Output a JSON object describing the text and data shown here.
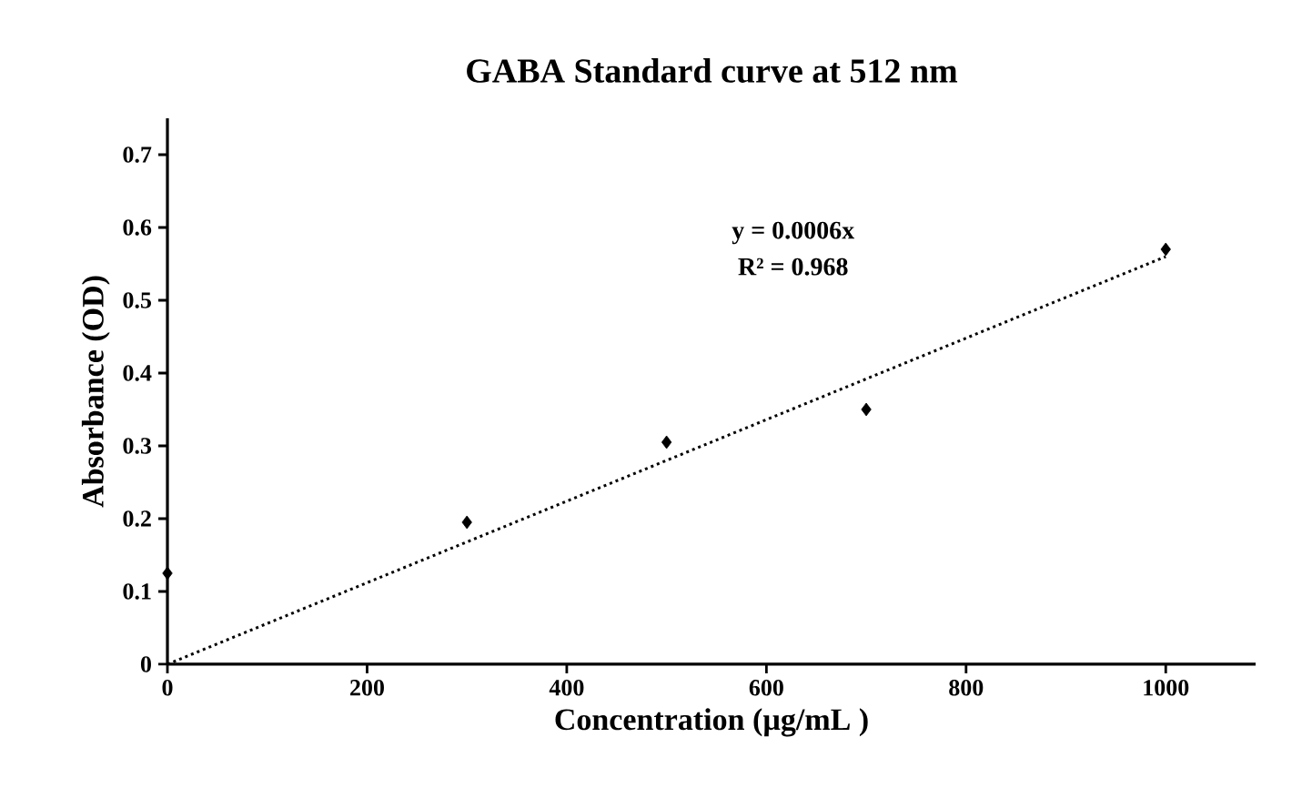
{
  "chart_data": {
    "type": "scatter",
    "title": "GABA Standard curve  at 512 nm",
    "xlabel": "Concentration  (µg/mL )",
    "ylabel": "Absorbance  (OD)",
    "xlim": [
      0,
      1090
    ],
    "xticks": [
      0,
      200,
      400,
      600,
      800,
      1000
    ],
    "ylim": [
      0,
      0.75
    ],
    "yticks": [
      0,
      0.1,
      0.2,
      0.3,
      0.4,
      0.5,
      0.6,
      0.7
    ],
    "series": [
      {
        "type": "scatter",
        "color": "#000000",
        "marker": "diamond",
        "x": [
          0,
          300,
          500,
          700,
          1000
        ],
        "values": [
          0.125,
          0.195,
          0.305,
          0.35,
          0.57
        ]
      },
      {
        "type": "line",
        "color": "#000000",
        "marker": "none",
        "line_style": "dotted",
        "x": [
          0,
          1000
        ],
        "values": [
          0,
          0.56
        ]
      }
    ],
    "annotations": [
      "y = 0.0006x",
      "R² = 0.968"
    ],
    "grid": false
  }
}
